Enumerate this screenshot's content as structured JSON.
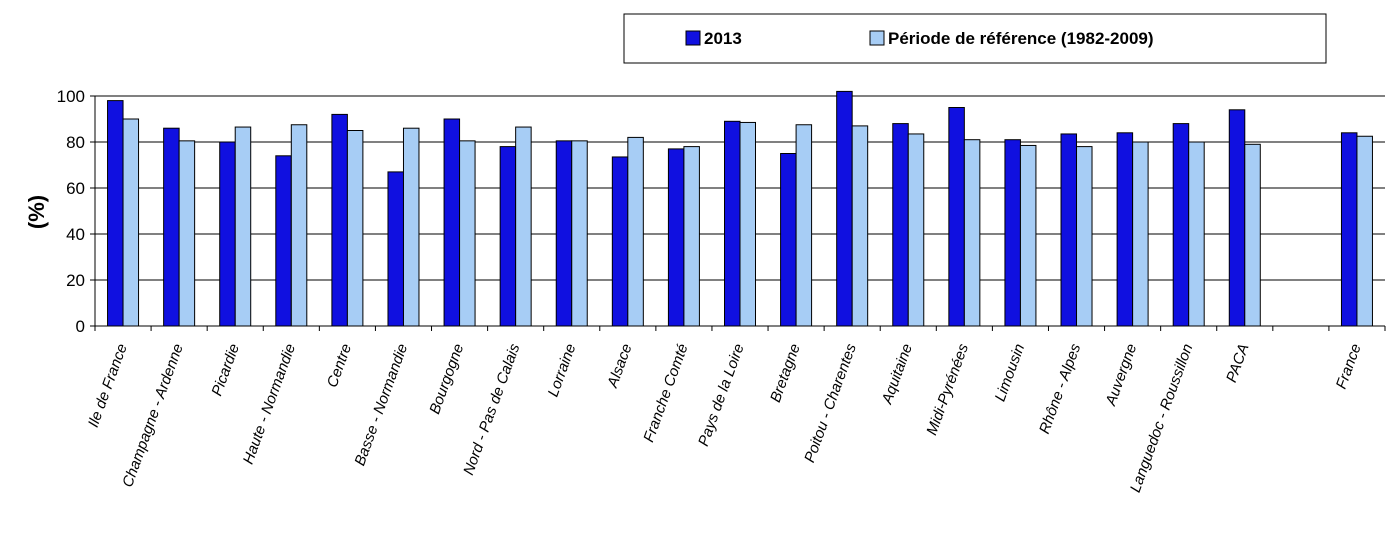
{
  "chart_data": {
    "type": "bar",
    "title": "",
    "xlabel": "",
    "ylabel": "(%)",
    "ylim": [
      0,
      100
    ],
    "yticks": [
      0,
      20,
      40,
      60,
      80,
      100
    ],
    "grid": true,
    "legend_position": "top-right",
    "categories": [
      "Ile de France",
      "Champagne - Ardenne",
      "Picardie",
      "Haute - Normandie",
      "Centre",
      "Basse - Normandie",
      "Bourgogne",
      "Nord - Pas de Calais",
      "Lorraine",
      "Alsace",
      "Franche Comté",
      "Pays de la Loire",
      "Bretagne",
      "Poitou - Charentes",
      "Aquitaine",
      "Midi-Pyrénées",
      "Limousin",
      "Rhône - Alpes",
      "Auvergne",
      "Languedoc - Roussillon",
      "PACA",
      "",
      "France"
    ],
    "series": [
      {
        "name": "2013",
        "color": "#1010e0",
        "values": [
          98,
          86,
          80,
          74,
          92,
          67,
          90,
          78,
          80.5,
          73.5,
          77,
          89,
          75,
          102,
          88,
          95,
          81,
          83.5,
          84,
          88,
          94,
          null,
          84
        ]
      },
      {
        "name": "Période de référence (1982-2009)",
        "color": "#a7cdf5",
        "values": [
          90,
          80.5,
          86.5,
          87.5,
          85,
          86,
          80.5,
          86.5,
          80.5,
          82,
          78,
          88.5,
          87.5,
          87,
          83.5,
          81,
          78.5,
          78,
          80,
          80,
          79,
          null,
          82.5
        ]
      }
    ]
  }
}
